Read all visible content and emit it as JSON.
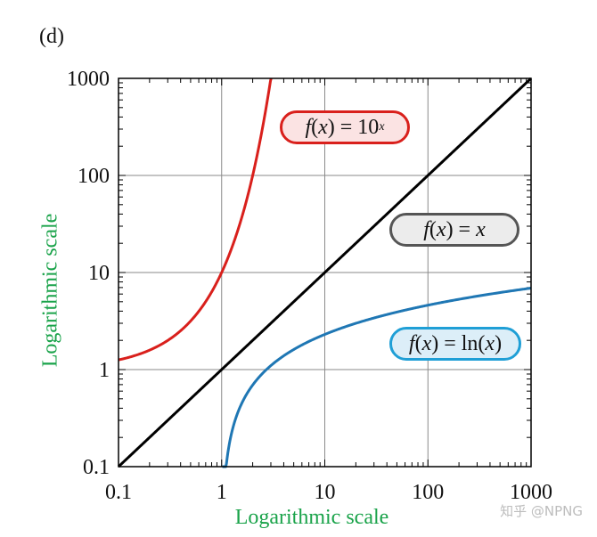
{
  "panel_label": "(d)",
  "watermark": "知乎 @NPNG",
  "chart_data": {
    "type": "line",
    "xscale": "log",
    "yscale": "log",
    "xlim": [
      0.1,
      1000
    ],
    "ylim": [
      0.1,
      1000
    ],
    "xlabel": "Logarithmic scale",
    "ylabel": "Logarithmic scale",
    "xticks": [
      "0.1",
      "1",
      "10",
      "100",
      "1000"
    ],
    "yticks": [
      "0.1",
      "1",
      "10",
      "100",
      "1000"
    ],
    "grid": true,
    "series": [
      {
        "name": "10^x",
        "label_parts": {
          "f": "f",
          "x": "x",
          "eq": ") = 10",
          "sup": "x"
        },
        "color": "#d9201c",
        "function": "exp10"
      },
      {
        "name": "x",
        "label_parts": {
          "f": "f",
          "x": "x",
          "eq": ") = ",
          "rhs": "x"
        },
        "color": "#000000",
        "function": "identity"
      },
      {
        "name": "ln(x)",
        "label_parts": {
          "f": "f",
          "x": "x",
          "eq": ") = ln(",
          "arg": "x",
          "close": ")"
        },
        "color": "#1f77b4",
        "function": "ln"
      }
    ],
    "badge_styles": {
      "exp10": {
        "fill": "#fbe3e3",
        "border": "#d9201c"
      },
      "identity": {
        "fill": "#ececec",
        "border": "#555555"
      },
      "ln": {
        "fill": "#dceef8",
        "border": "#1f9fd6"
      }
    }
  }
}
